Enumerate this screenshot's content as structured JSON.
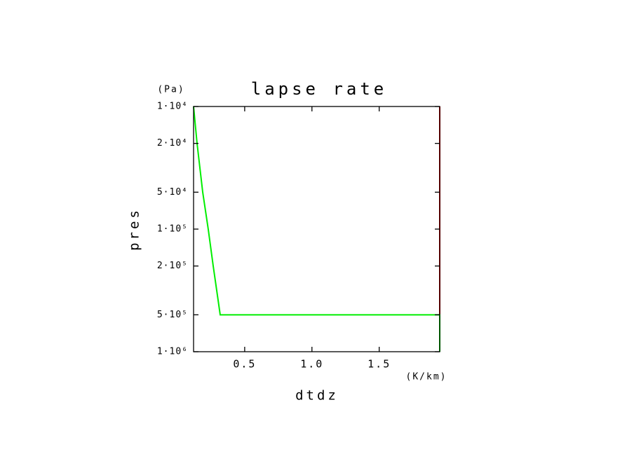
{
  "chart_data": {
    "type": "line",
    "title": "lapse rate",
    "x_label": "dtdz",
    "x_unit": "(K/km)",
    "y_label": "pres",
    "y_unit": "(Pa)",
    "xlim": [
      0.12,
      1.95
    ],
    "ylim": [
      10000,
      1000000
    ],
    "y_log": true,
    "y_inverted": true,
    "xticks": [
      0.5,
      {
        "value": 1,
        "label": "1.0"
      },
      1.5
    ],
    "yticks": [
      {
        "value": 10000,
        "label": "1·10⁴"
      },
      {
        "value": 20000,
        "label": "2·10⁴"
      },
      {
        "value": 50000,
        "label": "5·10⁴"
      },
      {
        "value": 100000,
        "label": "1·10⁵"
      },
      {
        "value": 200000,
        "label": "2·10⁵"
      },
      {
        "value": 500000,
        "label": "5·10⁵"
      },
      {
        "value": 1000000,
        "label": "1·10⁶"
      }
    ],
    "series": [
      {
        "color": "#00ee00",
        "x": [
          0.12,
          0.146,
          0.188,
          0.229,
          0.266,
          0.318,
          1.95,
          1.95
        ],
        "values": [
          10000,
          20000,
          50000,
          100000,
          200000,
          500000,
          500000,
          1000000
        ]
      },
      {
        "color": "#ee0000",
        "x": [
          1.95,
          1.95
        ],
        "values": [
          10000,
          500000
        ]
      }
    ]
  }
}
